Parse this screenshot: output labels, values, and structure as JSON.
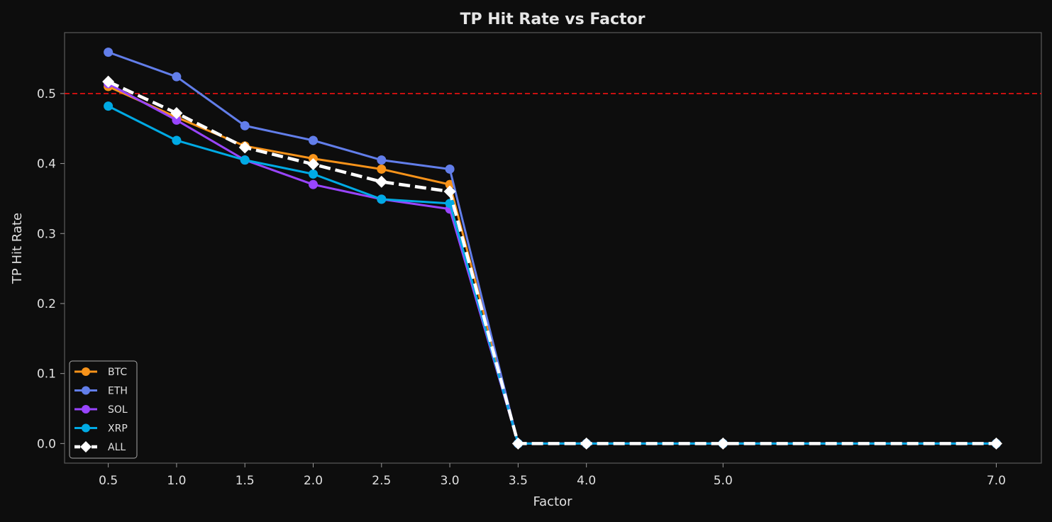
{
  "chart_data": {
    "type": "line",
    "title": "TP Hit Rate vs Factor",
    "xlabel": "Factor",
    "ylabel": "TP Hit Rate",
    "x": [
      0.5,
      1.0,
      1.5,
      2.0,
      2.5,
      3.0,
      3.5,
      4.0,
      5.0,
      7.0
    ],
    "xticks": [
      "0.5",
      "1.0",
      "1.5",
      "2.0",
      "2.5",
      "3.0",
      "3.5",
      "4.0",
      "5.0",
      "7.0"
    ],
    "yticks": [
      "0.0",
      "0.1",
      "0.2",
      "0.3",
      "0.4",
      "0.5"
    ],
    "xlim": [
      0.18,
      7.33
    ],
    "ylim": [
      -0.028,
      0.587
    ],
    "grid": false,
    "legend_position": "lower-left",
    "reference_line": {
      "y": 0.5,
      "color": "#e01010",
      "style": "dashed"
    },
    "series": [
      {
        "name": "BTC",
        "color": "#f7931a",
        "marker": "circle",
        "style": "solid",
        "values": [
          0.51,
          0.466,
          0.425,
          0.407,
          0.392,
          0.37,
          0,
          0,
          0,
          0
        ]
      },
      {
        "name": "ETH",
        "color": "#627eea",
        "marker": "circle",
        "style": "solid",
        "values": [
          0.559,
          0.524,
          0.454,
          0.433,
          0.405,
          0.392,
          0,
          0,
          0,
          0
        ]
      },
      {
        "name": "SOL",
        "color": "#9945ff",
        "marker": "circle",
        "style": "solid",
        "values": [
          0.514,
          0.462,
          0.405,
          0.37,
          0.349,
          0.335,
          0,
          0,
          0,
          0
        ]
      },
      {
        "name": "XRP",
        "color": "#00aae4",
        "marker": "circle",
        "style": "solid",
        "values": [
          0.482,
          0.433,
          0.405,
          0.385,
          0.349,
          0.343,
          0,
          0,
          0,
          0
        ]
      },
      {
        "name": "ALL",
        "color": "#ffffff",
        "marker": "diamond",
        "style": "dashed",
        "values": [
          0.517,
          0.472,
          0.423,
          0.399,
          0.374,
          0.36,
          0,
          0,
          0,
          0
        ]
      }
    ]
  }
}
